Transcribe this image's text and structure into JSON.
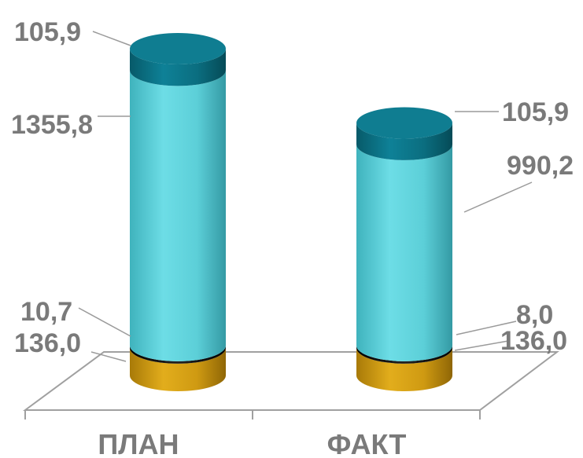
{
  "chart_data": {
    "type": "bar",
    "stacked": true,
    "style": "3d-cylinder",
    "categories": [
      "ПЛАН",
      "ФАКТ"
    ],
    "series": [
      {
        "values": [
          136.0,
          136.0
        ],
        "labels": [
          "136,0",
          "136,0"
        ],
        "color": "#c9960f"
      },
      {
        "values": [
          10.7,
          8.0
        ],
        "labels": [
          "10,7",
          "8,0"
        ],
        "color": "#1a1a1a"
      },
      {
        "values": [
          1355.8,
          990.2
        ],
        "labels": [
          "1355,8",
          "990,2"
        ],
        "color": "#5ccfd8"
      },
      {
        "values": [
          105.9,
          105.9
        ],
        "labels": [
          "105,9",
          "105,9"
        ],
        "color": "#0b6e80"
      }
    ],
    "grid": false,
    "legend": "none"
  }
}
